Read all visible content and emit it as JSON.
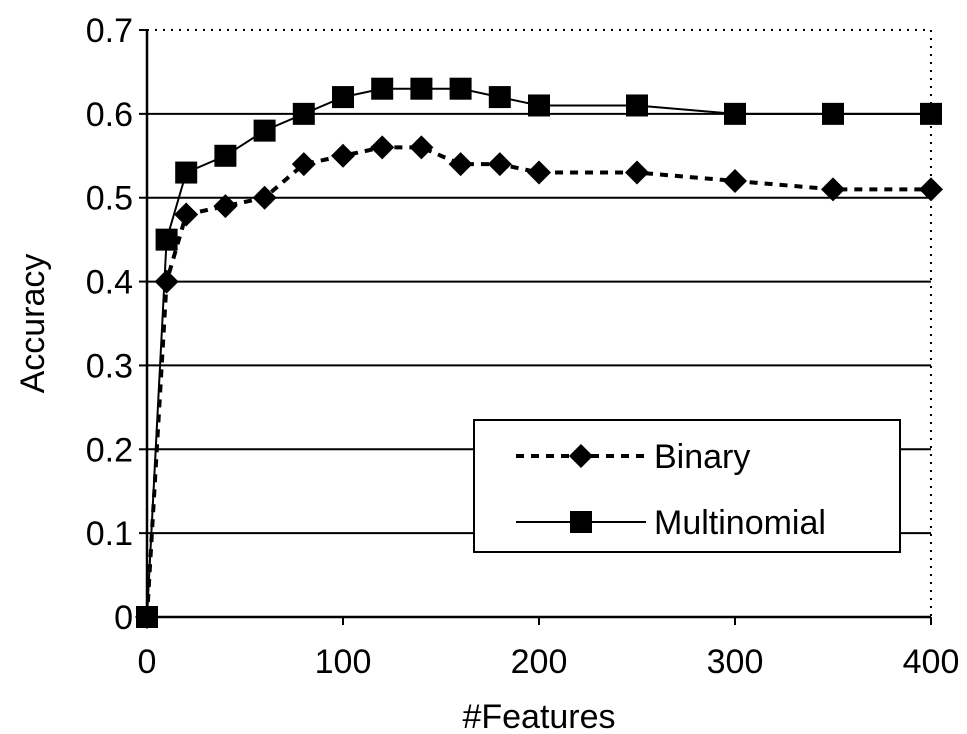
{
  "chart_data": {
    "type": "line",
    "title": "",
    "xlabel": "#Features",
    "ylabel": "Accuracy",
    "xlim": [
      0,
      400
    ],
    "ylim": [
      0,
      0.7
    ],
    "xticks": [
      "0",
      "100",
      "200",
      "300",
      "400"
    ],
    "yticks": [
      "0",
      "0.1",
      "0.2",
      "0.3",
      "0.4",
      "0.5",
      "0.6",
      "0.7"
    ],
    "grid": "horizontal",
    "legend_position": "bottom-right",
    "series": [
      {
        "name": "Binary",
        "line_style": "dashed",
        "marker": "diamond",
        "color": "#000000",
        "x": [
          0,
          10,
          20,
          40,
          60,
          80,
          100,
          120,
          140,
          160,
          180,
          200,
          250,
          300,
          350,
          400
        ],
        "y": [
          0,
          0.4,
          0.48,
          0.49,
          0.5,
          0.54,
          0.55,
          0.56,
          0.56,
          0.54,
          0.54,
          0.53,
          0.53,
          0.52,
          0.51,
          0.51
        ]
      },
      {
        "name": "Multinomial",
        "line_style": "solid",
        "marker": "square",
        "color": "#000000",
        "x": [
          0,
          10,
          20,
          40,
          60,
          80,
          100,
          120,
          140,
          160,
          180,
          200,
          250,
          300,
          350,
          400
        ],
        "y": [
          0,
          0.45,
          0.53,
          0.55,
          0.58,
          0.6,
          0.62,
          0.63,
          0.63,
          0.63,
          0.62,
          0.61,
          0.61,
          0.6,
          0.6,
          0.6
        ]
      }
    ]
  }
}
